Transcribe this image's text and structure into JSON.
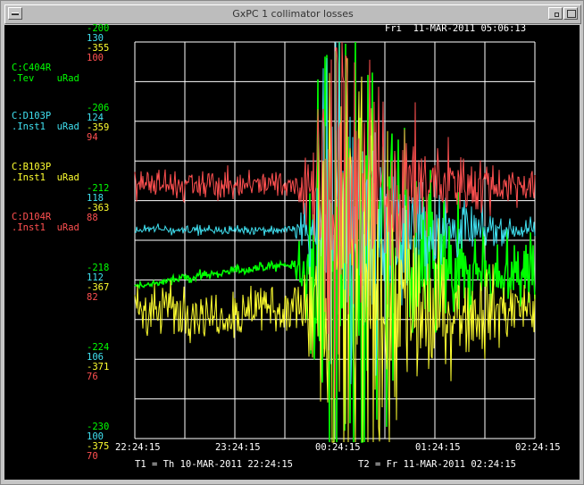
{
  "window": {
    "title": "GxPC 1 collimator losses"
  },
  "header": {
    "datetime": "Fri  11-MAR-2011 05:06:13"
  },
  "footer": {
    "t1": "T1 = Th 10-MAR-2011 22:24:15",
    "t2": "T2 = Fr 11-MAR-2011 02:24:15"
  },
  "colors": {
    "green": "#00ff00",
    "cyan": "#40e0f0",
    "yellow": "#ffff30",
    "red": "#ff5050",
    "grid": "#ffffff",
    "background": "#000000"
  },
  "legend": [
    {
      "device": "C:C404R",
      "unit": ".Tev    uRad",
      "color": "green"
    },
    {
      "device": "C:D103P",
      "unit": ".Inst1  uRad",
      "color": "cyan"
    },
    {
      "device": "C:B103P",
      "unit": ".Inst1  uRad",
      "color": "yellow"
    },
    {
      "device": "C:D104R",
      "unit": ".Inst1  uRad",
      "color": "red"
    }
  ],
  "y_scale_labels": [
    [
      "-200",
      "130",
      "-355",
      "100"
    ],
    [
      "-206",
      "124",
      "-359",
      "94"
    ],
    [
      "-212",
      "118",
      "-363",
      "88"
    ],
    [
      "-218",
      "112",
      "-367",
      "82"
    ],
    [
      "-224",
      "106",
      "-371",
      "76"
    ],
    [
      "-230",
      "100",
      "-375",
      "70"
    ]
  ],
  "chart_data": {
    "type": "line",
    "x_ticks": [
      "22:24:15",
      "23:24:15",
      "00:24:15",
      "01:24:15",
      "02:24:15"
    ],
    "x_range": [
      "22:24:15",
      "02:24:15"
    ],
    "grid": true,
    "series": [
      {
        "name": "C:C404R",
        "color": "green",
        "ylim": [
          -230,
          -200
        ],
        "baseline": -217.5,
        "quiet_trend": [
          -218.5,
          -217.5,
          -216.8
        ]
      },
      {
        "name": "C:D103P",
        "color": "cyan",
        "ylim": [
          100,
          130
        ],
        "baseline": 115.8
      },
      {
        "name": "C:B103P",
        "color": "yellow",
        "ylim": [
          -375,
          -355
        ],
        "baseline": -368.5
      },
      {
        "name": "C:D104R",
        "color": "red",
        "ylim": [
          70,
          100
        ],
        "baseline": 89.2
      }
    ],
    "event_time": "00:24:15"
  }
}
